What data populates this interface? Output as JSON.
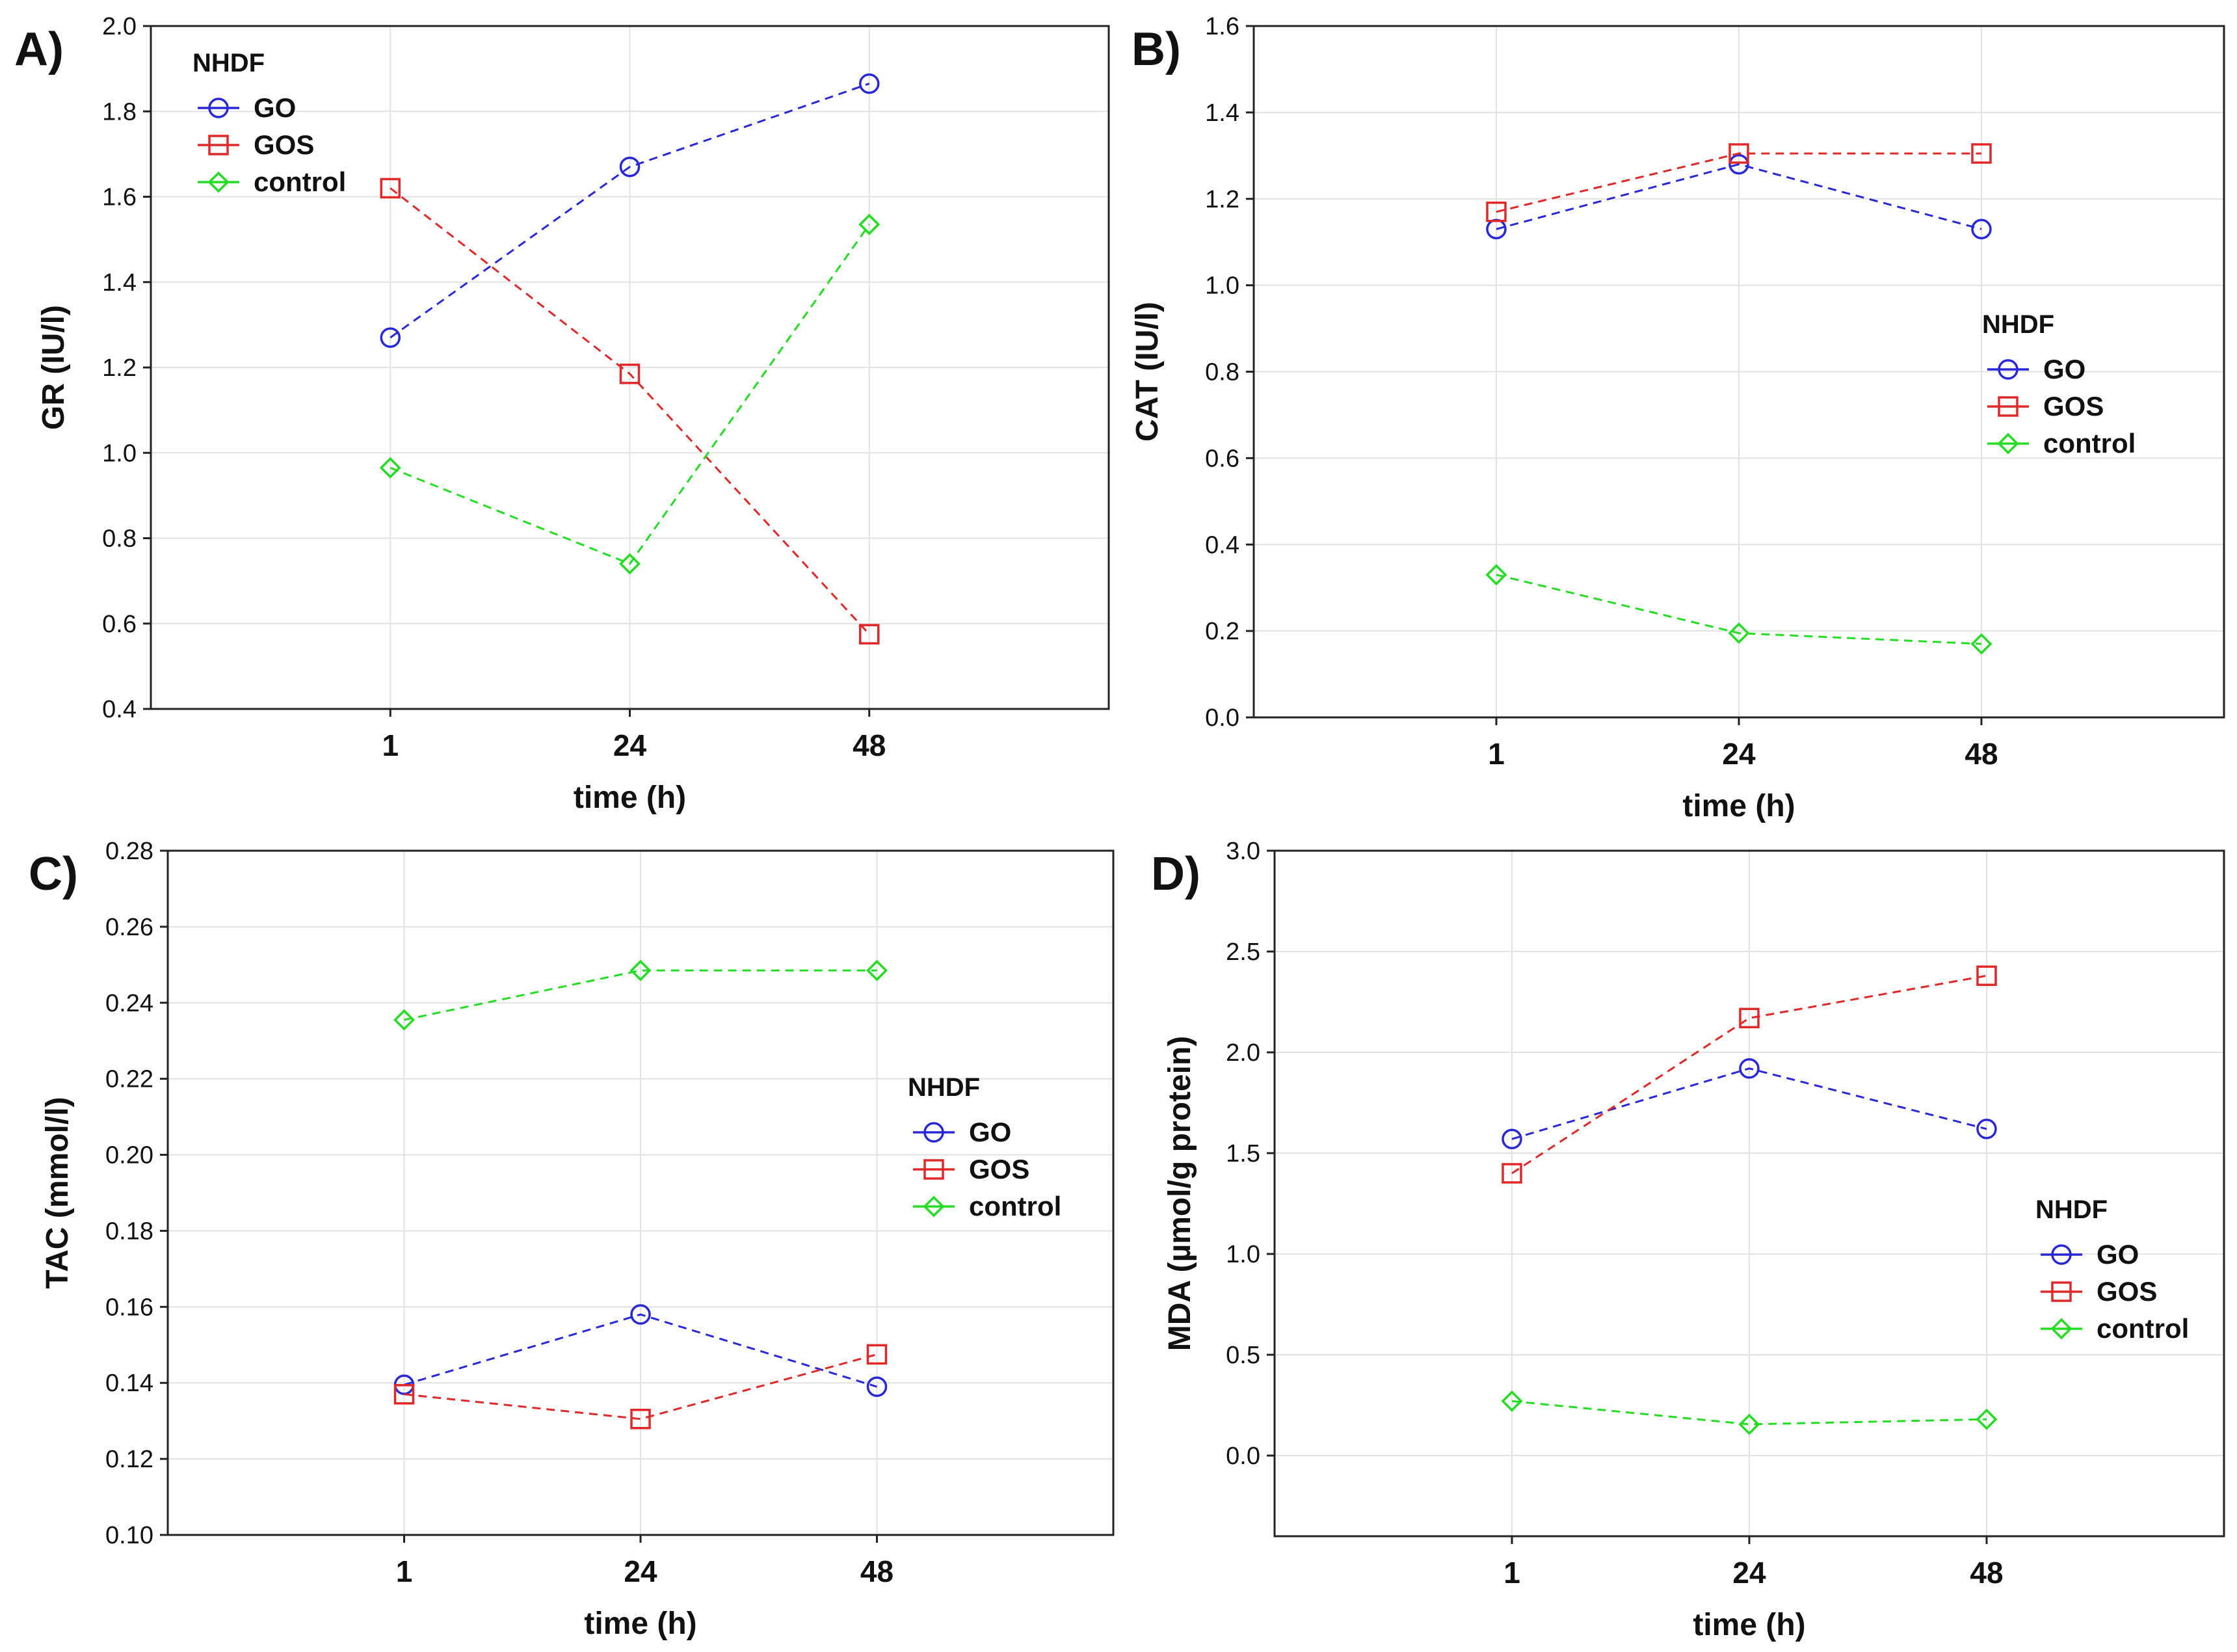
{
  "figure": {
    "legend_title": "NHDF",
    "colors": {
      "GO": "#2828d8",
      "GOS": "#e02828",
      "control": "#22dd22"
    },
    "series_markers": {
      "GO": "circle",
      "GOS": "square",
      "control": "diamond"
    }
  },
  "chart_data": [
    {
      "panel": "A)",
      "type": "line",
      "x": [
        "1",
        "24",
        "48"
      ],
      "xlabel": "time (h)",
      "ylabel": "GR (IU/l)",
      "ylim": [
        0.4,
        2.0
      ],
      "yticks": [
        0.4,
        0.6,
        0.8,
        1.0,
        1.2,
        1.4,
        1.6,
        1.8,
        2.0
      ],
      "ytick_labels": [
        "0.4",
        "0.6",
        "0.8",
        "1.0",
        "1.2",
        "1.4",
        "1.6",
        "1.8",
        "2.0"
      ],
      "legend_placement": "top-left",
      "series": [
        {
          "name": "GO",
          "values": [
            1.27,
            1.67,
            1.865
          ]
        },
        {
          "name": "GOS",
          "values": [
            1.62,
            1.185,
            0.575
          ]
        },
        {
          "name": "control",
          "values": [
            0.965,
            0.74,
            1.535
          ]
        }
      ]
    },
    {
      "panel": "B)",
      "type": "line",
      "x": [
        "1",
        "24",
        "48"
      ],
      "xlabel": "time (h)",
      "ylabel": "CAT (IU/l)",
      "ylim": [
        0.0,
        1.6
      ],
      "yticks": [
        0.0,
        0.2,
        0.4,
        0.6,
        0.8,
        1.0,
        1.2,
        1.4,
        1.6
      ],
      "ytick_labels": [
        "0.0",
        "0.2",
        "0.4",
        "0.6",
        "0.8",
        "1.0",
        "1.2",
        "1.4",
        "1.6"
      ],
      "legend_placement": "right",
      "series": [
        {
          "name": "GO",
          "values": [
            1.13,
            1.28,
            1.13
          ]
        },
        {
          "name": "GOS",
          "values": [
            1.17,
            1.305,
            1.305
          ]
        },
        {
          "name": "control",
          "values": [
            0.33,
            0.195,
            0.17
          ]
        }
      ]
    },
    {
      "panel": "C)",
      "type": "line",
      "x": [
        "1",
        "24",
        "48"
      ],
      "xlabel": "time (h)",
      "ylabel": "TAC (mmol/l)",
      "ylim": [
        0.1,
        0.28
      ],
      "yticks": [
        0.1,
        0.12,
        0.14,
        0.16,
        0.18,
        0.2,
        0.22,
        0.24,
        0.26,
        0.28
      ],
      "ytick_labels": [
        "0.10",
        "0.12",
        "0.14",
        "0.16",
        "0.18",
        "0.20",
        "0.22",
        "0.24",
        "0.26",
        "0.28"
      ],
      "legend_placement": "right",
      "series": [
        {
          "name": "GO",
          "values": [
            0.1395,
            0.158,
            0.139
          ]
        },
        {
          "name": "GOS",
          "values": [
            0.137,
            0.1305,
            0.1475
          ]
        },
        {
          "name": "control",
          "values": [
            0.2355,
            0.2485,
            0.2485
          ]
        }
      ]
    },
    {
      "panel": "D)",
      "type": "line",
      "x": [
        "1",
        "24",
        "48"
      ],
      "xlabel": "time (h)",
      "ylabel": "MDA (µmol/g protein)",
      "ylim": [
        -0.4,
        3.0
      ],
      "yticks": [
        0.0,
        0.5,
        1.0,
        1.5,
        2.0,
        2.5,
        3.0
      ],
      "ytick_labels": [
        "0.0",
        "0.5",
        "1.0",
        "1.5",
        "2.0",
        "2.5",
        "3.0"
      ],
      "legend_placement": "bottom-right",
      "series": [
        {
          "name": "GO",
          "values": [
            1.57,
            1.92,
            1.62
          ]
        },
        {
          "name": "GOS",
          "values": [
            1.4,
            2.17,
            2.38
          ]
        },
        {
          "name": "control",
          "values": [
            0.27,
            0.155,
            0.18
          ]
        }
      ]
    }
  ]
}
